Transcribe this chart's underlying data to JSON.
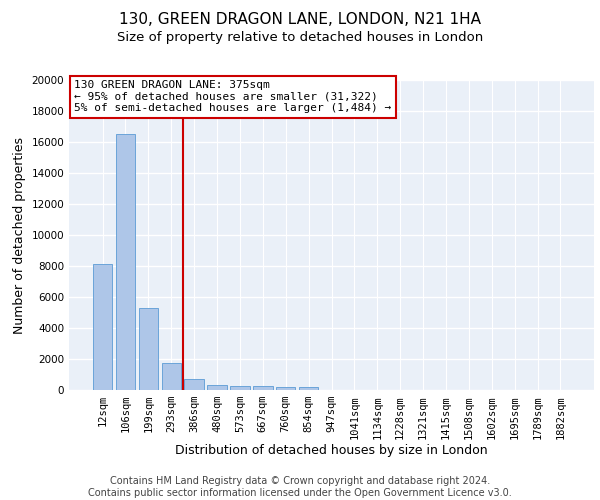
{
  "title": "130, GREEN DRAGON LANE, LONDON, N21 1HA",
  "subtitle": "Size of property relative to detached houses in London",
  "xlabel": "Distribution of detached houses by size in London",
  "ylabel": "Number of detached properties",
  "footer_line1": "Contains HM Land Registry data © Crown copyright and database right 2024.",
  "footer_line2": "Contains public sector information licensed under the Open Government Licence v3.0.",
  "categories": [
    "12sqm",
    "106sqm",
    "199sqm",
    "293sqm",
    "386sqm",
    "480sqm",
    "573sqm",
    "667sqm",
    "760sqm",
    "854sqm",
    "947sqm",
    "1041sqm",
    "1134sqm",
    "1228sqm",
    "1321sqm",
    "1415sqm",
    "1508sqm",
    "1602sqm",
    "1695sqm",
    "1789sqm",
    "1882sqm"
  ],
  "values": [
    8100,
    16500,
    5300,
    1750,
    700,
    350,
    280,
    230,
    200,
    170,
    0,
    0,
    0,
    0,
    0,
    0,
    0,
    0,
    0,
    0,
    0
  ],
  "bar_color": "#aec6e8",
  "bar_edge_color": "#5b9bd5",
  "vline_x": 3.5,
  "vline_color": "#cc0000",
  "annotation_text_line1": "130 GREEN DRAGON LANE: 375sqm",
  "annotation_text_line2": "← 95% of detached houses are smaller (31,322)",
  "annotation_text_line3": "5% of semi-detached houses are larger (1,484) →",
  "annotation_box_color": "#cc0000",
  "ylim": [
    0,
    20000
  ],
  "yticks": [
    0,
    2000,
    4000,
    6000,
    8000,
    10000,
    12000,
    14000,
    16000,
    18000,
    20000
  ],
  "bg_color": "#eaf0f8",
  "grid_color": "#ffffff",
  "title_fontsize": 11,
  "subtitle_fontsize": 9.5,
  "axis_label_fontsize": 9,
  "tick_fontsize": 7.5,
  "footer_fontsize": 7,
  "annotation_fontsize": 8
}
